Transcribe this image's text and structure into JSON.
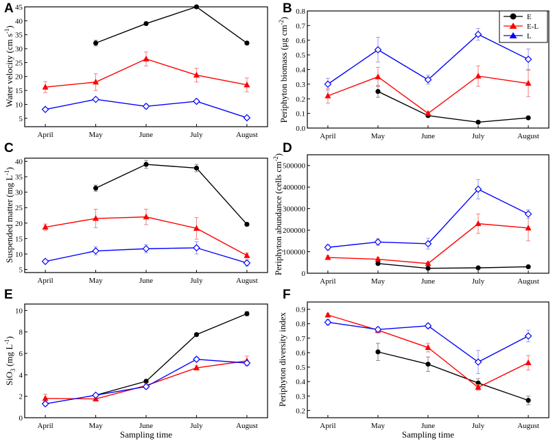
{
  "colors": {
    "E": "#000000",
    "E-L": "#ff0000",
    "L": "#0000ff",
    "err_E": "#888888",
    "err_EL": "#f08080",
    "err_L": "#9999ee"
  },
  "legend": [
    "E",
    "E-L",
    "L"
  ],
  "shared_x_label": "Sampling time",
  "chart_data": [
    {
      "panel": "A",
      "type": "line",
      "categories": [
        "April",
        "May",
        "June",
        "July",
        "August"
      ],
      "ylabel": "Water velocity (cm s-1)",
      "ylim": [
        2,
        45
      ],
      "yticks": [
        5,
        10,
        15,
        20,
        25,
        30,
        35,
        40,
        45
      ],
      "ytick_labels": [
        "5",
        "10",
        "15",
        "20",
        "25",
        "30",
        "35",
        "40",
        "45"
      ],
      "series": [
        {
          "name": "E",
          "values": [
            null,
            32,
            39,
            45,
            32
          ],
          "errors": [
            null,
            1,
            0.5,
            0.5,
            0.5
          ]
        },
        {
          "name": "E-L",
          "values": [
            16.2,
            18,
            26.3,
            20.5,
            17
          ],
          "errors": [
            2,
            3,
            2.5,
            2.5,
            2.5
          ]
        },
        {
          "name": "L",
          "values": [
            8.2,
            11.8,
            9.3,
            11.1,
            5.2
          ],
          "errors": [
            0.5,
            0.5,
            0.8,
            0.6,
            0.5
          ]
        }
      ]
    },
    {
      "panel": "B",
      "type": "line",
      "categories": [
        "April",
        "May",
        "June",
        "July",
        "August"
      ],
      "ylabel": "Periphyton biomass (μg cm-2)",
      "ylim": [
        0,
        0.8
      ],
      "yticks": [
        0,
        0.1,
        0.2,
        0.3,
        0.4,
        0.5,
        0.6,
        0.7,
        0.8
      ],
      "ytick_labels": [
        "0.0",
        "0.1",
        "0.2",
        "0.3",
        "0.4",
        "0.5",
        "0.6",
        "0.7",
        "0.8"
      ],
      "series": [
        {
          "name": "E",
          "values": [
            null,
            0.25,
            0.085,
            0.04,
            0.07
          ],
          "errors": [
            null,
            0.04,
            0.01,
            0.005,
            0.005
          ]
        },
        {
          "name": "E-L",
          "values": [
            0.22,
            0.35,
            0.1,
            0.355,
            0.305
          ],
          "errors": [
            0.05,
            0.065,
            0.01,
            0.07,
            0.09
          ]
        },
        {
          "name": "L",
          "values": [
            0.3,
            0.535,
            0.33,
            0.64,
            0.47
          ],
          "errors": [
            0.04,
            0.085,
            0.03,
            0.04,
            0.07
          ]
        }
      ]
    },
    {
      "panel": "C",
      "type": "line",
      "categories": [
        "April",
        "May",
        "June",
        "July",
        "August"
      ],
      "ylabel": "Suspended matter (mg L-1)",
      "ylim": [
        4,
        41
      ],
      "yticks": [
        5,
        10,
        15,
        20,
        25,
        30,
        35,
        40
      ],
      "ytick_labels": [
        "5",
        "10",
        "15",
        "20",
        "25",
        "30",
        "35",
        "40"
      ],
      "series": [
        {
          "name": "E",
          "values": [
            null,
            31.3,
            39,
            37.8,
            19.6
          ],
          "errors": [
            null,
            1,
            1.3,
            1.2,
            0.5
          ]
        },
        {
          "name": "E-L",
          "values": [
            18.7,
            21.5,
            22,
            18.3,
            9.5
          ],
          "errors": [
            1,
            3,
            2.5,
            3.5,
            0.8
          ]
        },
        {
          "name": "L",
          "values": [
            7.6,
            11,
            11.7,
            12,
            7.1
          ],
          "errors": [
            0.5,
            1.3,
            1.3,
            2,
            1
          ]
        }
      ]
    },
    {
      "panel": "D",
      "type": "line",
      "categories": [
        "April",
        "May",
        "June",
        "July",
        "August"
      ],
      "ylabel": "Periphyton abundance (cells cm-2)",
      "ylim": [
        0,
        550000
      ],
      "yticks": [
        0,
        100000,
        200000,
        300000,
        400000,
        500000
      ],
      "ytick_labels": [
        "0",
        "100000",
        "200000",
        "300000",
        "400000",
        "500000"
      ],
      "series": [
        {
          "name": "E",
          "values": [
            null,
            45000,
            23000,
            25000,
            30000
          ],
          "errors": [
            null,
            5000,
            3000,
            3000,
            3000
          ]
        },
        {
          "name": "E-L",
          "values": [
            73000,
            65000,
            45000,
            230000,
            210000
          ],
          "errors": [
            8000,
            8000,
            5000,
            45000,
            60000
          ]
        },
        {
          "name": "L",
          "values": [
            120000,
            145000,
            137000,
            390000,
            275000
          ],
          "errors": [
            12000,
            15000,
            25000,
            45000,
            20000
          ]
        }
      ]
    },
    {
      "panel": "E",
      "type": "line",
      "categories": [
        "April",
        "May",
        "June",
        "July",
        "August"
      ],
      "ylabel": "SiO3 (mg L-1)",
      "ylim": [
        0,
        10.6
      ],
      "yticks": [
        0,
        2,
        4,
        6,
        8,
        10
      ],
      "ytick_labels": [
        "0",
        "2",
        "4",
        "6",
        "8",
        "10"
      ],
      "series": [
        {
          "name": "E",
          "values": [
            null,
            2.1,
            3.4,
            7.75,
            9.7
          ],
          "errors": [
            null,
            0.1,
            0.15,
            0.15,
            0.2
          ]
        },
        {
          "name": "E-L",
          "values": [
            1.8,
            1.75,
            3,
            4.65,
            5.3
          ],
          "errors": [
            0.4,
            0.15,
            0.2,
            0.2,
            0.45
          ]
        },
        {
          "name": "L",
          "values": [
            1.3,
            2.1,
            2.9,
            5.45,
            5.1
          ],
          "errors": [
            0.2,
            0.1,
            0.2,
            0.2,
            0.2
          ]
        }
      ]
    },
    {
      "panel": "F",
      "type": "line",
      "categories": [
        "April",
        "May",
        "June",
        "July",
        "August"
      ],
      "ylabel": "Periphyton diversity index",
      "ylim": [
        0.15,
        0.95
      ],
      "yticks": [
        0.2,
        0.3,
        0.4,
        0.5,
        0.6,
        0.7,
        0.8,
        0.9
      ],
      "ytick_labels": [
        "0.2",
        "0.3",
        "0.4",
        "0.5",
        "0.6",
        "0.7",
        "0.8",
        "0.9"
      ],
      "series": [
        {
          "name": "E",
          "values": [
            null,
            0.605,
            0.52,
            0.39,
            0.27
          ],
          "errors": [
            null,
            0.06,
            0.05,
            0.03,
            0.03
          ]
        },
        {
          "name": "E-L",
          "values": [
            0.86,
            0.755,
            0.635,
            0.36,
            0.53
          ],
          "errors": [
            0.01,
            0.02,
            0.03,
            0.02,
            0.05
          ]
        },
        {
          "name": "L",
          "values": [
            0.81,
            0.76,
            0.785,
            0.535,
            0.715
          ],
          "errors": [
            0.02,
            0.015,
            0.015,
            0.08,
            0.04
          ]
        }
      ]
    }
  ]
}
